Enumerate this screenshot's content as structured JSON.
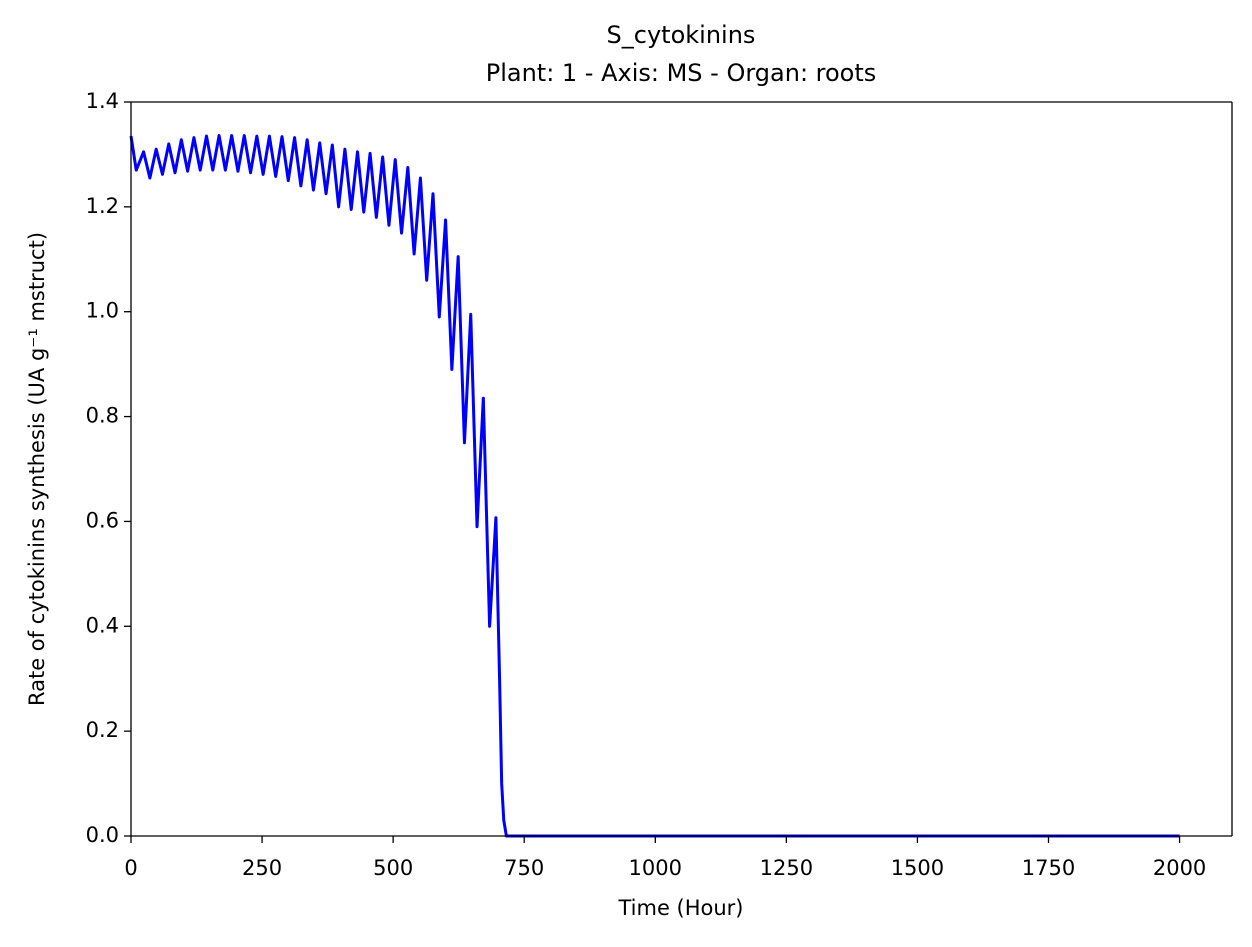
{
  "chart_data": {
    "type": "line",
    "title": "S_cytokinins",
    "subtitle": "Plant: 1 - Axis: MS - Organ: roots",
    "x_label": "Time (Hour)",
    "y_label": "Rate of cytokinins synthesis (UA g⁻¹ mstruct)",
    "x": [
      0,
      10,
      24,
      36,
      48,
      60,
      72,
      84,
      96,
      108,
      120,
      132,
      144,
      156,
      168,
      180,
      192,
      204,
      216,
      228,
      240,
      252,
      264,
      276,
      288,
      300,
      312,
      324,
      336,
      348,
      360,
      372,
      384,
      396,
      408,
      420,
      432,
      444,
      456,
      468,
      480,
      492,
      504,
      516,
      528,
      540,
      552,
      564,
      576,
      588,
      600,
      612,
      624,
      636,
      648,
      660,
      672,
      684,
      696,
      703,
      707,
      711,
      716,
      2000
    ],
    "series": [
      {
        "color": "#0000ff",
        "values": [
          1.335,
          1.27,
          1.305,
          1.255,
          1.31,
          1.262,
          1.32,
          1.265,
          1.328,
          1.268,
          1.332,
          1.27,
          1.335,
          1.27,
          1.336,
          1.27,
          1.336,
          1.268,
          1.336,
          1.265,
          1.335,
          1.262,
          1.335,
          1.258,
          1.334,
          1.25,
          1.332,
          1.24,
          1.328,
          1.232,
          1.322,
          1.225,
          1.318,
          1.2,
          1.31,
          1.195,
          1.305,
          1.19,
          1.302,
          1.18,
          1.295,
          1.165,
          1.29,
          1.15,
          1.275,
          1.11,
          1.255,
          1.06,
          1.225,
          0.99,
          1.175,
          0.89,
          1.105,
          0.75,
          0.995,
          0.59,
          0.835,
          0.4,
          0.607,
          0.3,
          0.1,
          0.03,
          0,
          0
        ]
      }
    ],
    "xlim": [
      0,
      2100
    ],
    "ylim": [
      0,
      1.4
    ],
    "xticks": [
      0,
      250,
      500,
      750,
      1000,
      1250,
      1500,
      1750,
      2000
    ],
    "yticks": [
      {
        "value": 0,
        "label": "0.0"
      },
      0.2,
      0.4,
      0.6,
      0.8,
      {
        "value": 1,
        "label": "1.0"
      },
      1.2,
      1.4
    ]
  }
}
